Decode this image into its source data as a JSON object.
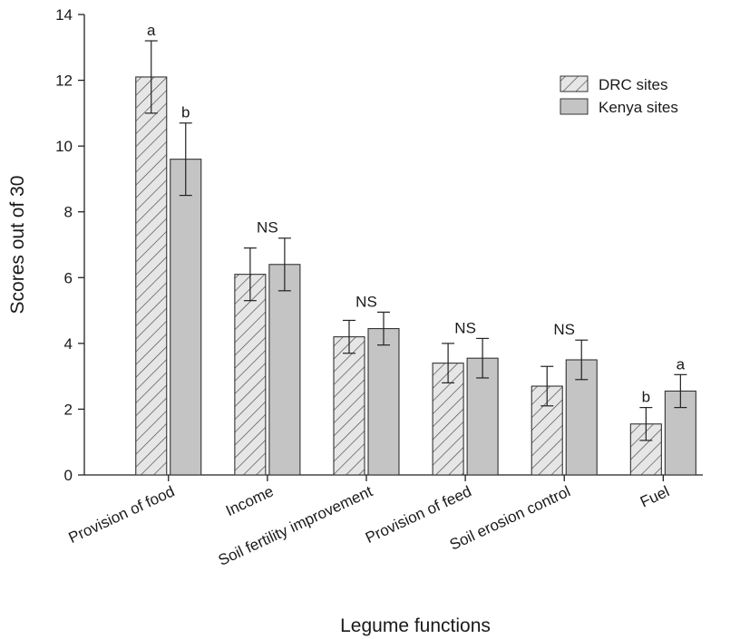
{
  "chart_data": {
    "type": "bar",
    "xlabel": "Legume functions",
    "ylabel": "Scores out of 30",
    "ylim": [
      0,
      14
    ],
    "yticks": [
      0,
      2,
      4,
      6,
      8,
      10,
      12,
      14
    ],
    "grid": false,
    "legend_position": "top-right",
    "categories": [
      "Provision of food",
      "Income",
      "Soil fertility improvement",
      "Provision of feed",
      "Soil erosion control",
      "Fuel"
    ],
    "series": [
      {
        "name": "DRC sites",
        "pattern": "hatched",
        "color": "#e6e6e6",
        "values": [
          12.1,
          6.1,
          4.2,
          3.4,
          2.7,
          1.55
        ],
        "errors": [
          1.1,
          0.8,
          0.5,
          0.6,
          0.6,
          0.5
        ]
      },
      {
        "name": "Kenya sites",
        "pattern": "solid",
        "color": "#c4c4c4",
        "values": [
          9.6,
          6.4,
          4.45,
          3.55,
          3.5,
          2.55
        ],
        "errors": [
          1.1,
          0.8,
          0.5,
          0.6,
          0.6,
          0.5
        ]
      }
    ],
    "annotations": [
      {
        "category": 0,
        "series": 0,
        "text": "a"
      },
      {
        "category": 0,
        "series": 1,
        "text": "b"
      },
      {
        "category": 1,
        "series": -1,
        "text": "NS"
      },
      {
        "category": 2,
        "series": -1,
        "text": "NS"
      },
      {
        "category": 3,
        "series": -1,
        "text": "NS"
      },
      {
        "category": 4,
        "series": -1,
        "text": "NS"
      },
      {
        "category": 5,
        "series": 0,
        "text": "b"
      },
      {
        "category": 5,
        "series": 1,
        "text": "a"
      }
    ]
  }
}
